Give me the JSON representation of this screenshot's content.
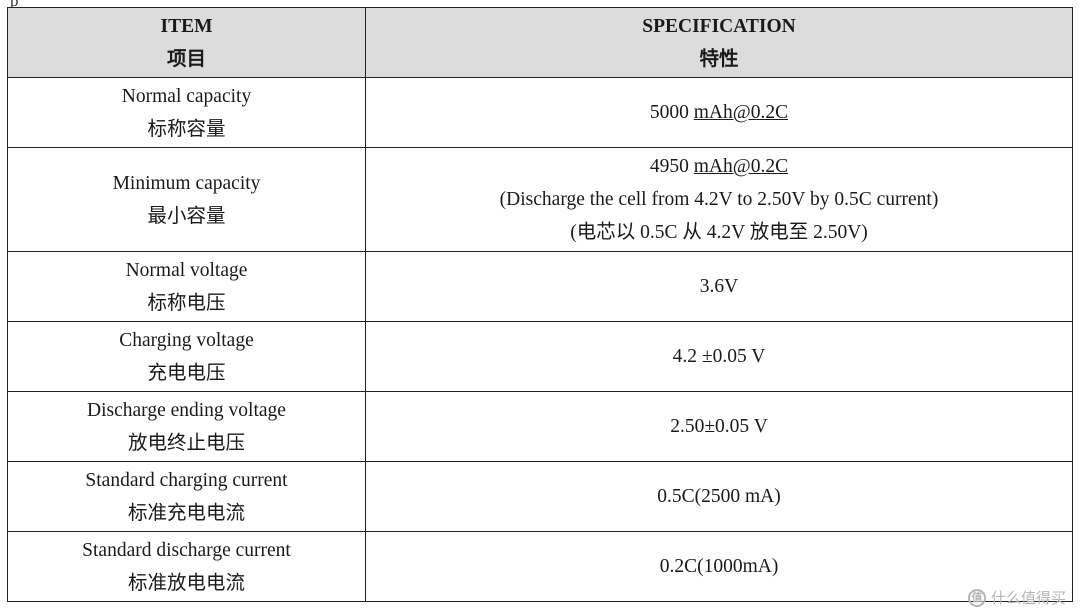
{
  "fragment_text": "p",
  "header": {
    "item_en": "ITEM",
    "item_zh": "项目",
    "spec_en": "SPECIFICATION",
    "spec_zh": "特性"
  },
  "rows": [
    {
      "item_en": "Normal capacity",
      "item_zh": "标称容量",
      "spec_value": "5000",
      "spec_unit": "mAh@0.2C",
      "height": 70
    },
    {
      "item_en": "Minimum capacity",
      "item_zh": "最小容量",
      "spec_value": "4950",
      "spec_unit": "mAh@0.2C",
      "spec_note_en": "(Discharge the cell from 4.2V to 2.50V by 0.5C current)",
      "spec_note_zh": "(电芯以 0.5C 从 4.2V 放电至 2.50V)"
    },
    {
      "item_en": "Normal voltage",
      "item_zh": "标称电压",
      "spec": "3.6V"
    },
    {
      "item_en": "Charging voltage",
      "item_zh": "充电电压",
      "spec": "4.2 ±0.05 V"
    },
    {
      "item_en": "Discharge ending voltage",
      "item_zh": "放电终止电压",
      "spec": "2.50±0.05 V"
    },
    {
      "item_en": "Standard charging current",
      "item_zh": "标准充电电流",
      "spec": "0.5C(2500 mA)"
    },
    {
      "item_en": "Standard discharge current",
      "item_zh": "标准放电电流",
      "spec": "0.2C(1000mA)"
    }
  ],
  "watermark": {
    "icon_text": "值",
    "text": "什么值得买"
  }
}
